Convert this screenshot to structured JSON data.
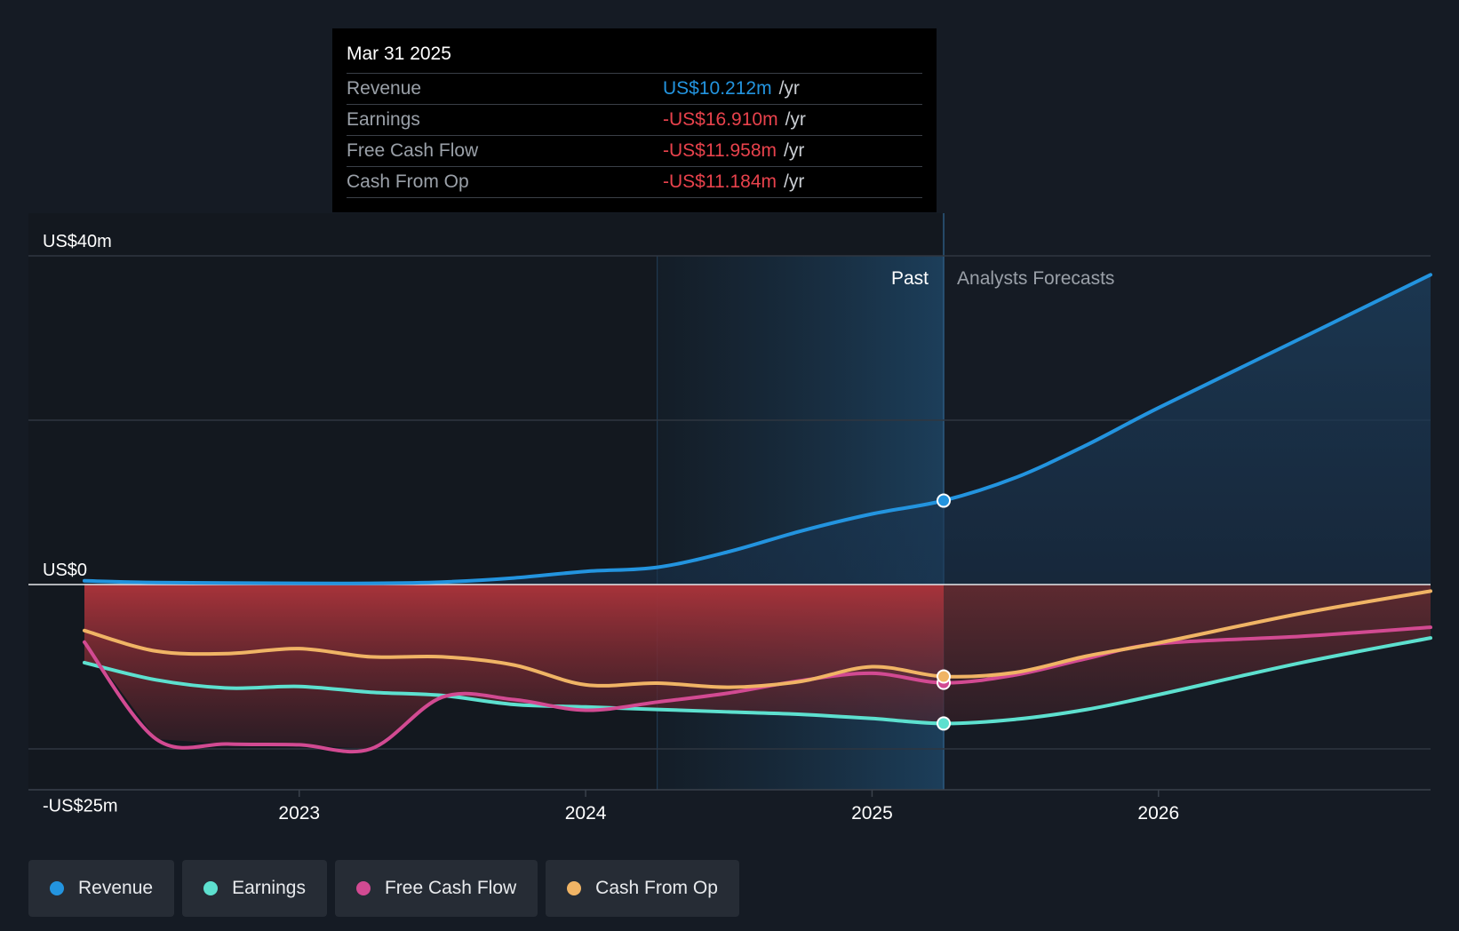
{
  "tooltip": {
    "date": "Mar 31 2025",
    "rows": [
      {
        "label": "Revenue",
        "value": "US$10.212m",
        "unit": "/yr"
      },
      {
        "label": "Earnings",
        "value": "-US$16.910m",
        "unit": "/yr"
      },
      {
        "label": "Free Cash Flow",
        "value": "-US$11.958m",
        "unit": "/yr"
      },
      {
        "label": "Cash From Op",
        "value": "-US$11.184m",
        "unit": "/yr"
      }
    ]
  },
  "chart_data": {
    "type": "line",
    "title": "",
    "y_axis_labels": [
      "US$40m",
      "US$0",
      "-US$25m"
    ],
    "ylim": [
      -25,
      40
    ],
    "x_ticks": [
      "2023",
      "2024",
      "2025",
      "2026"
    ],
    "xlim": [
      2022.2,
      2026.95
    ],
    "past_label": "Past",
    "forecast_label": "Analysts Forecasts",
    "past_boundary_x": 2025.25,
    "highlight_start_x": 2024.25,
    "series": [
      {
        "name": "Revenue",
        "color": "#2394df",
        "x": [
          2022.25,
          2022.5,
          2023.0,
          2023.25,
          2023.5,
          2023.75,
          2024.0,
          2024.25,
          2024.5,
          2024.75,
          2025.0,
          2025.25,
          2025.5,
          2025.75,
          2026.0,
          2026.5,
          2026.95
        ],
        "y": [
          0.45,
          0.25,
          0.15,
          0.15,
          0.3,
          0.8,
          1.6,
          2.1,
          4.0,
          6.5,
          8.6,
          10.212,
          13.0,
          17.0,
          21.5,
          30.0,
          37.7
        ]
      },
      {
        "name": "Earnings",
        "color": "#5de0cf",
        "x": [
          2022.25,
          2022.5,
          2022.75,
          2023.0,
          2023.25,
          2023.5,
          2023.75,
          2024.0,
          2024.25,
          2024.5,
          2024.75,
          2025.0,
          2025.25,
          2025.5,
          2025.75,
          2026.0,
          2026.5,
          2026.95
        ],
        "y": [
          -9.5,
          -11.6,
          -12.6,
          -12.4,
          -13.1,
          -13.5,
          -14.6,
          -14.9,
          -15.2,
          -15.5,
          -15.8,
          -16.3,
          -16.91,
          -16.4,
          -15.2,
          -13.4,
          -9.5,
          -6.5
        ]
      },
      {
        "name": "Free Cash Flow",
        "color": "#d24a92",
        "x": [
          2022.25,
          2022.5,
          2022.75,
          2023.0,
          2023.25,
          2023.5,
          2023.75,
          2024.0,
          2024.25,
          2024.5,
          2024.75,
          2025.0,
          2025.25,
          2025.5,
          2025.75,
          2026.0,
          2026.5,
          2026.95
        ],
        "y": [
          -7.0,
          -18.8,
          -19.4,
          -19.5,
          -20.0,
          -13.7,
          -14.0,
          -15.3,
          -14.3,
          -13.2,
          -11.7,
          -10.8,
          -11.958,
          -11.0,
          -9.0,
          -7.2,
          -6.3,
          -5.2
        ]
      },
      {
        "name": "Cash From Op",
        "color": "#f0b465",
        "x": [
          2022.25,
          2022.5,
          2022.75,
          2023.0,
          2023.25,
          2023.5,
          2023.75,
          2024.0,
          2024.25,
          2024.5,
          2024.75,
          2025.0,
          2025.25,
          2025.5,
          2025.75,
          2026.0,
          2026.5,
          2026.95
        ],
        "y": [
          -5.6,
          -8.1,
          -8.4,
          -7.8,
          -8.8,
          -8.8,
          -9.8,
          -12.2,
          -12.0,
          -12.5,
          -11.8,
          -10.0,
          -11.184,
          -10.7,
          -8.7,
          -7.1,
          -3.5,
          -0.8
        ]
      }
    ]
  },
  "legend": [
    {
      "label": "Revenue",
      "color": "#2394df"
    },
    {
      "label": "Earnings",
      "color": "#5de0cf"
    },
    {
      "label": "Free Cash Flow",
      "color": "#d24a92"
    },
    {
      "label": "Cash From Op",
      "color": "#f0b465"
    }
  ]
}
